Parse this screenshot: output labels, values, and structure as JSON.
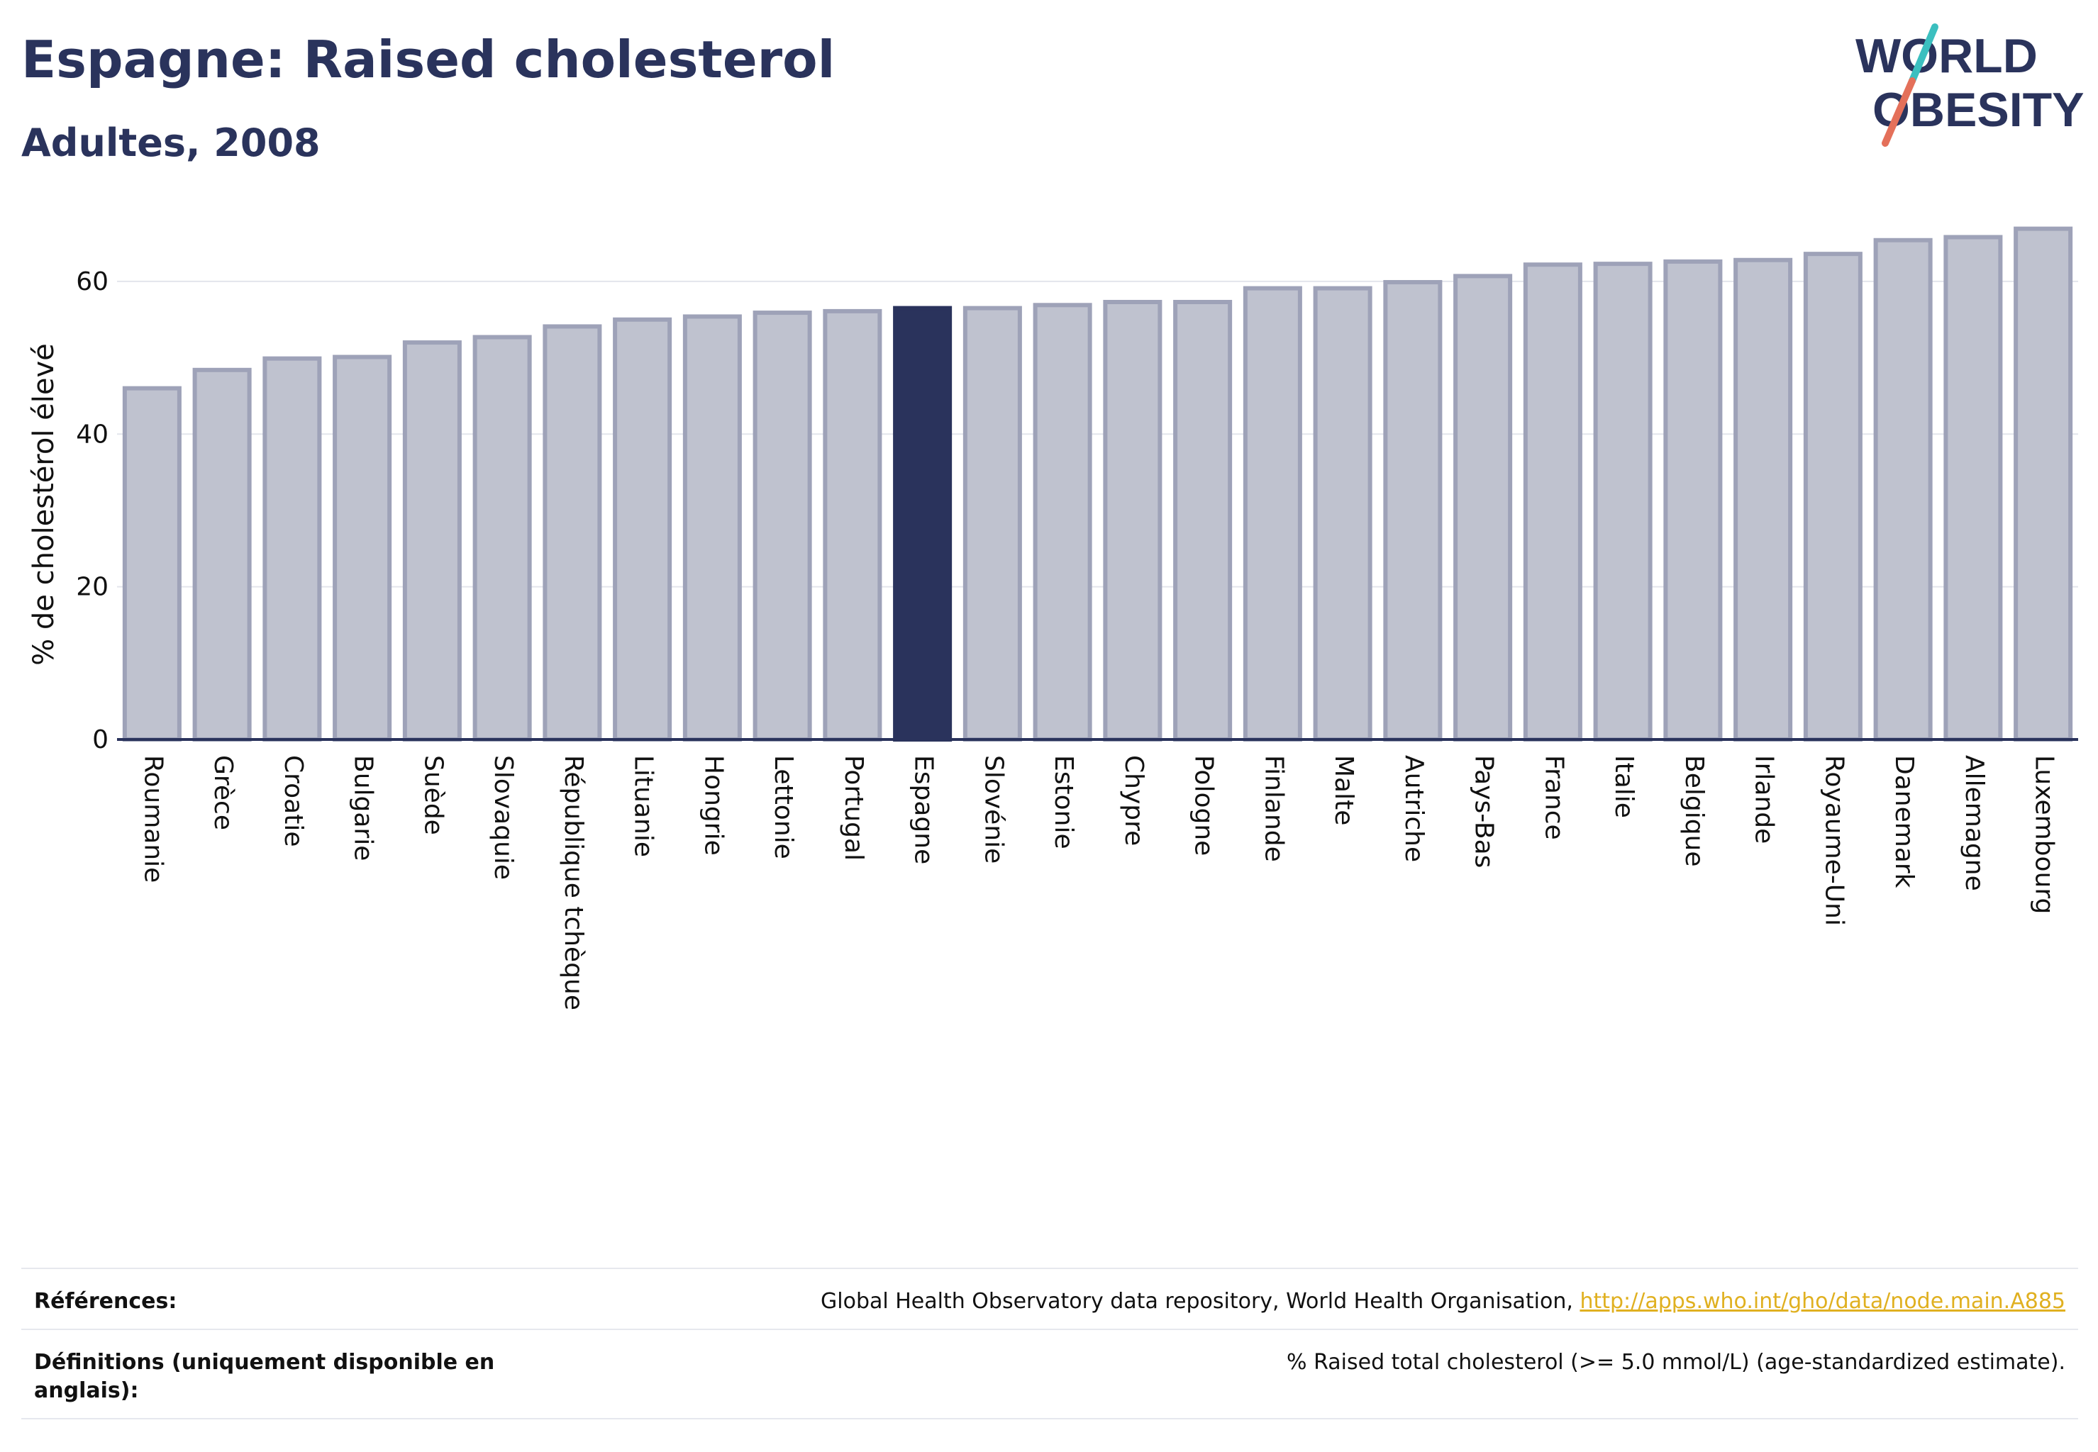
{
  "header": {
    "title": "Espagne: Raised cholesterol",
    "subtitle": "Adultes, 2008"
  },
  "logo": {
    "line1": "WORLD",
    "line2": "OBESITY",
    "name": "world-obesity-logo"
  },
  "colors": {
    "bar": "#bfc2cf",
    "bar_stroke": "#9ea2b8",
    "highlight": "#2a335c",
    "grid": "#e3e5ec",
    "axis": "#2a335c",
    "logo_teal": "#3bbfbf",
    "logo_red": "#e4705a",
    "link": "#e0b020"
  },
  "chart_data": {
    "type": "bar",
    "ylabel": "% de cholestérol élevé",
    "xlabel": "",
    "ylim": [
      0,
      69
    ],
    "yticks": [
      0,
      20,
      40,
      60
    ],
    "grid": true,
    "highlight": "Espagne",
    "categories": [
      "Roumanie",
      "Grèce",
      "Croatie",
      "Bulgarie",
      "Suède",
      "Slovaquie",
      "République tchèque",
      "Lituanie",
      "Hongrie",
      "Lettonie",
      "Portugal",
      "Espagne",
      "Slovénie",
      "Estonie",
      "Chypre",
      "Pologne",
      "Finlande",
      "Malte",
      "Autriche",
      "Pays-Bas",
      "France",
      "Italie",
      "Belgique",
      "Irlande",
      "Royaume-Uni",
      "Danemark",
      "Allemagne",
      "Luxembourg"
    ],
    "values": [
      46.0,
      48.4,
      49.9,
      50.1,
      52.0,
      52.7,
      54.1,
      55.0,
      55.4,
      55.9,
      56.1,
      56.5,
      56.5,
      56.9,
      57.3,
      57.3,
      59.1,
      59.1,
      59.9,
      60.7,
      62.2,
      62.3,
      62.6,
      62.8,
      63.6,
      65.4,
      65.8,
      66.9
    ]
  },
  "references": {
    "label": "Références:",
    "text": "Global Health Observatory data repository, World Health Organisation, ",
    "link": "http://apps.who.int/gho/data/node.main.A885"
  },
  "definitions": {
    "label": "Définitions (uniquement disponible en anglais):",
    "text": "% Raised total cholesterol (>= 5.0 mmol/L) (age-standardized estimate)."
  }
}
